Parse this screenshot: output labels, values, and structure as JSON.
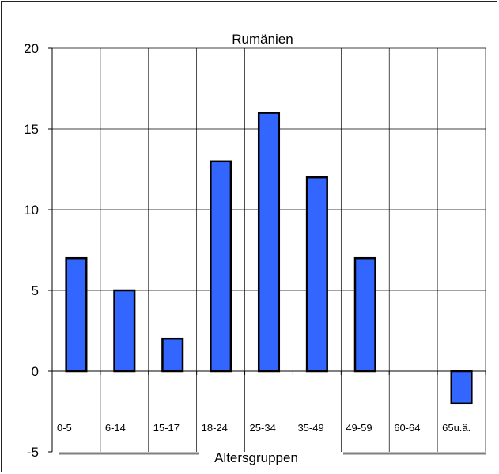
{
  "chart_data": {
    "type": "bar",
    "title": "Rumänien",
    "xlabel": "Altersgruppen",
    "ylabel": "",
    "categories": [
      "0-5",
      "6-14",
      "15-17",
      "18-24",
      "25-34",
      "35-49",
      "49-59",
      "60-64",
      "65u.ä."
    ],
    "values": [
      7,
      5,
      2,
      13,
      16,
      12,
      7,
      0,
      -2
    ],
    "ylim": [
      -5,
      20
    ],
    "yticks": [
      "-5",
      "0",
      "5",
      "10",
      "15",
      "20"
    ],
    "grid": true,
    "legend": "none",
    "bar_color": "#3366ff",
    "bar_stroke": "#000000",
    "plot_background": "#ffffff",
    "gridline_color": "#000000"
  }
}
